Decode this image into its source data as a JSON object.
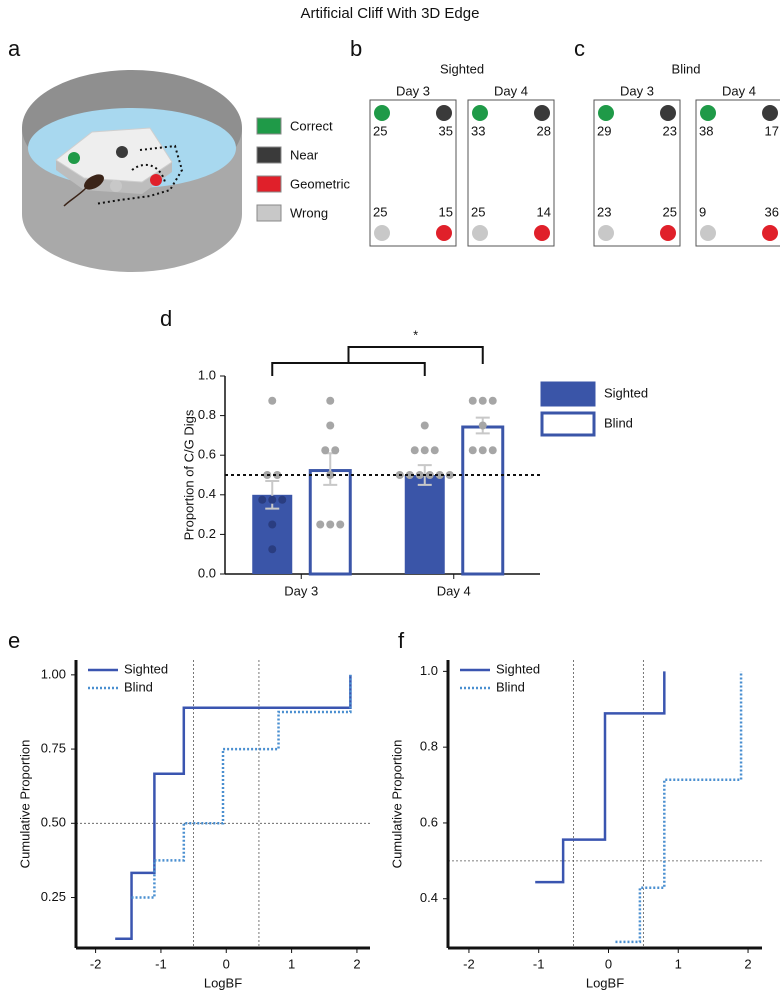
{
  "title": "Artificial Cliff With 3D Edge",
  "panel_labels": [
    "a",
    "b",
    "c",
    "d",
    "e",
    "f"
  ],
  "legend": [
    {
      "name": "Correct",
      "color": "#1f9a48"
    },
    {
      "name": "Near",
      "color": "#3a3a3a"
    },
    {
      "name": "Geometric",
      "color": "#e0202a"
    },
    {
      "name": "Wrong",
      "color": "#c8c8c8"
    }
  ],
  "arenas": [
    {
      "group": "Sighted",
      "days": [
        {
          "day": "Day 3",
          "correct": 25,
          "near": 35,
          "wrong": 25,
          "geometric": 15
        },
        {
          "day": "Day 4",
          "correct": 33,
          "near": 28,
          "wrong": 25,
          "geometric": 14
        }
      ]
    },
    {
      "group": "Blind",
      "days": [
        {
          "day": "Day 3",
          "correct": 29,
          "near": 23,
          "wrong": 23,
          "geometric": 25
        },
        {
          "day": "Day 4",
          "correct": 38,
          "near": 17,
          "wrong": 9,
          "geometric": 36
        }
      ]
    }
  ],
  "chart_data": [
    {
      "type": "bar",
      "ylabel": "Proportion of C/G Digs",
      "categories": [
        "Day 3",
        "Day 4"
      ],
      "series": [
        {
          "name": "Sighted",
          "color": "#3a55a8",
          "fill": true,
          "values": [
            0.4,
            0.5
          ],
          "errors": [
            0.07,
            0.05
          ],
          "points": [
            [
              0.875,
              0.5,
              0.5,
              0.375,
              0.375,
              0.375,
              0.25,
              0.125
            ],
            [
              0.75,
              0.625,
              0.625,
              0.625,
              0.5,
              0.5,
              0.5,
              0.5,
              0.5,
              0.5
            ]
          ]
        },
        {
          "name": "Blind",
          "color": "#3a55a8",
          "fill": false,
          "values": [
            0.53,
            0.75
          ],
          "errors": [
            0.08,
            0.04
          ],
          "points": [
            [
              0.875,
              0.75,
              0.625,
              0.625,
              0.5,
              0.25,
              0.25,
              0.25
            ],
            [
              0.875,
              0.875,
              0.875,
              0.75,
              0.625,
              0.625,
              0.625
            ]
          ]
        }
      ],
      "point_color": "#a6a6a6",
      "point_color_inside": "#2a3d80",
      "error_color": "#c8c8c8",
      "ylim": [
        0,
        1
      ],
      "yticks": [
        {
          "value": 0,
          "label": "0.0"
        },
        {
          "value": 0.2,
          "label": "0.2"
        },
        {
          "value": 0.4,
          "label": "0.4"
        },
        {
          "value": 0.6,
          "label": "0.6"
        },
        {
          "value": 0.8,
          "label": "0.8"
        },
        {
          "value": 1,
          "label": "1.0"
        }
      ],
      "reference_line": 0.5,
      "annotation": "*"
    },
    {
      "type": "step",
      "xlabel": "LogBF",
      "ylabel": "Cumulative Proportion",
      "series": [
        {
          "name": "Sighted",
          "color": "#3a55b0",
          "dash": false,
          "x": [
            -1.7,
            -1.45,
            -1.45,
            -1.1,
            -1.1,
            -0.65,
            -0.65,
            1.9,
            1.9
          ],
          "values": [
            0.111,
            0.111,
            0.333,
            0.333,
            0.667,
            0.667,
            0.889,
            0.889,
            1.0
          ]
        },
        {
          "name": "Blind",
          "color": "#4a8fd0",
          "dash": true,
          "x": [
            -1.45,
            -1.1,
            -1.1,
            -0.65,
            -0.65,
            -0.05,
            -0.05,
            0.8,
            0.8,
            1.9,
            1.9
          ],
          "values": [
            0.25,
            0.25,
            0.375,
            0.375,
            0.5,
            0.5,
            0.75,
            0.75,
            0.875,
            0.875,
            1.0
          ]
        }
      ],
      "xlim": [
        -2.3,
        2.2
      ],
      "xticks": [
        -2,
        -1,
        0,
        1,
        2
      ],
      "ylim": [
        0.08,
        1.05
      ],
      "yticks": [
        0.25,
        {
          "value": 0.5,
          "label": "0.50"
        },
        0.75,
        {
          "value": 1,
          "label": "1.00"
        }
      ],
      "vlines": [
        -0.5,
        0.5
      ],
      "hline": 0.5
    },
    {
      "type": "step",
      "xlabel": "LogBF",
      "ylabel": "Cumulative Proportion",
      "series": [
        {
          "name": "Sighted",
          "color": "#3a55b0",
          "dash": false,
          "x": [
            -1.05,
            -0.65,
            -0.65,
            -0.05,
            -0.05,
            0.8,
            0.8
          ],
          "values": [
            0.444,
            0.444,
            0.556,
            0.556,
            0.889,
            0.889,
            1.0
          ]
        },
        {
          "name": "Blind",
          "color": "#4a8fd0",
          "dash": true,
          "x": [
            0.1,
            0.45,
            0.45,
            0.8,
            0.8,
            1.9,
            1.9
          ],
          "values": [
            0.286,
            0.286,
            0.429,
            0.429,
            0.714,
            0.714,
            1.0
          ]
        }
      ],
      "xlim": [
        -2.3,
        2.2
      ],
      "xticks": [
        -2,
        -1,
        0,
        1,
        2
      ],
      "ylim": [
        0.27,
        1.03
      ],
      "yticks": [
        0.4,
        0.6,
        0.8,
        {
          "value": 1,
          "label": "1.0"
        }
      ],
      "vlines": [
        -0.5,
        0.5
      ],
      "hline": 0.5
    }
  ]
}
